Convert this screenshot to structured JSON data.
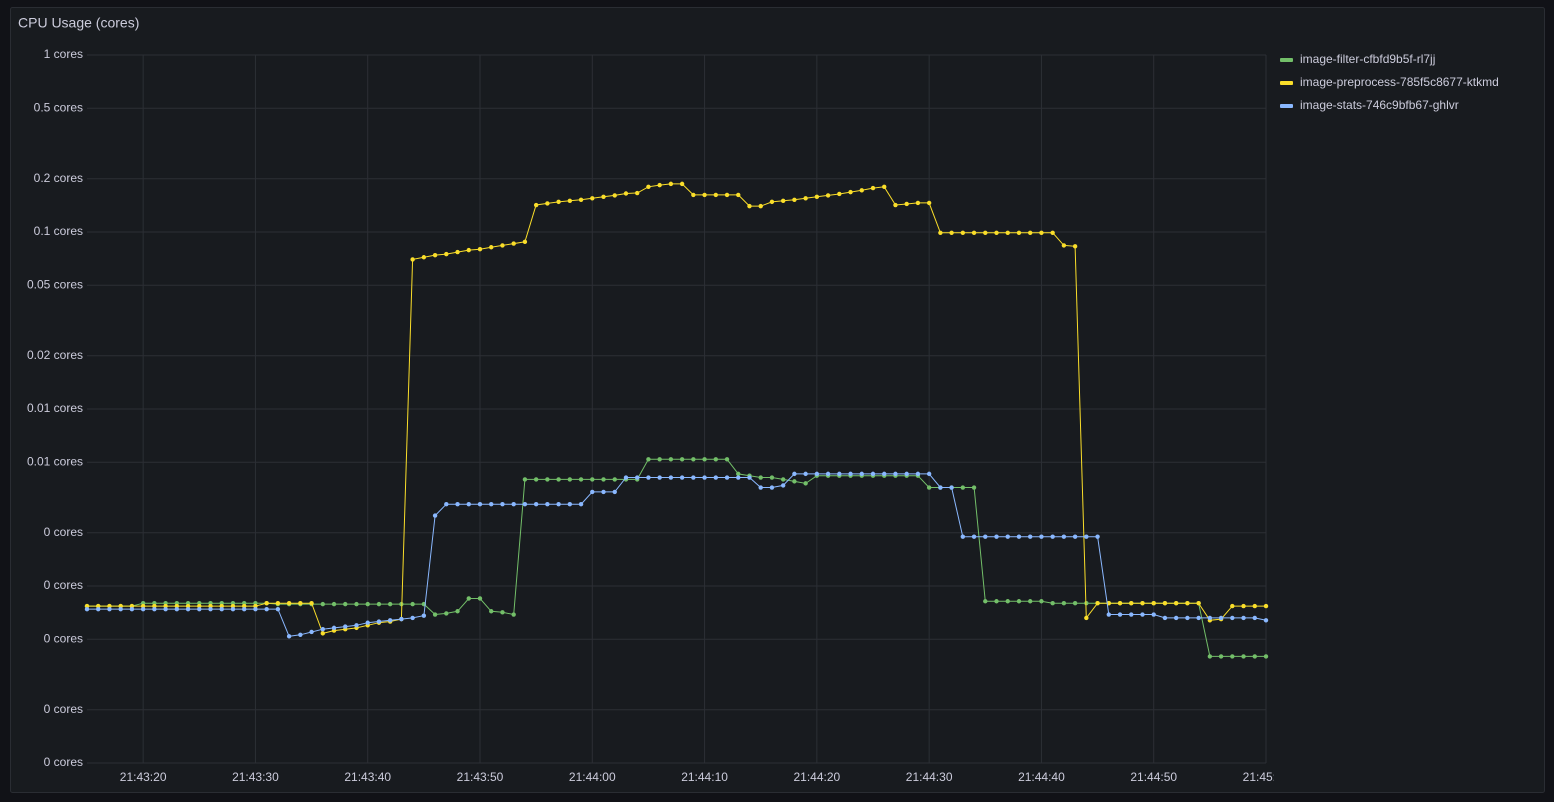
{
  "chart_data": {
    "type": "line",
    "title": "CPU Usage (cores)",
    "yscale": "log",
    "grid": true,
    "legend": "right",
    "xlim": [
      "21:43:15",
      "21:45:00"
    ],
    "xticks": [
      "21:43:20",
      "21:43:30",
      "21:43:40",
      "21:43:50",
      "21:44:00",
      "21:44:10",
      "21:44:20",
      "21:44:30",
      "21:44:40",
      "21:44:50",
      "21:45:00"
    ],
    "ylim": [
      0.0001,
      1
    ],
    "yticks": [
      {
        "value": 1,
        "label": "1 cores"
      },
      {
        "value": 0.5,
        "label": "0.5 cores"
      },
      {
        "value": 0.2,
        "label": "0.2 cores"
      },
      {
        "value": 0.1,
        "label": "0.1 cores"
      },
      {
        "value": 0.05,
        "label": "0.05 cores"
      },
      {
        "value": 0.02,
        "label": "0.02 cores"
      },
      {
        "value": 0.01,
        "label": "0.01 cores"
      },
      {
        "value": 0.005,
        "label": "0.01 cores"
      },
      {
        "value": 0.002,
        "label": "0 cores"
      },
      {
        "value": 0.001,
        "label": "0 cores"
      },
      {
        "value": 0.0005,
        "label": "0 cores"
      },
      {
        "value": 0.0002,
        "label": "0 cores"
      },
      {
        "value": 0.0001,
        "label": "0 cores"
      }
    ],
    "x": [
      "21:43:15",
      "21:43:16",
      "21:43:17",
      "21:43:18",
      "21:43:19",
      "21:43:20",
      "21:43:21",
      "21:43:22",
      "21:43:23",
      "21:43:24",
      "21:43:25",
      "21:43:26",
      "21:43:27",
      "21:43:28",
      "21:43:29",
      "21:43:30",
      "21:43:31",
      "21:43:32",
      "21:43:33",
      "21:43:34",
      "21:43:35",
      "21:43:36",
      "21:43:37",
      "21:43:38",
      "21:43:39",
      "21:43:40",
      "21:43:41",
      "21:43:42",
      "21:43:43",
      "21:43:44",
      "21:43:45",
      "21:43:46",
      "21:43:47",
      "21:43:48",
      "21:43:49",
      "21:43:50",
      "21:43:51",
      "21:43:52",
      "21:43:53",
      "21:43:54",
      "21:43:55",
      "21:43:56",
      "21:43:57",
      "21:43:58",
      "21:43:59",
      "21:44:00",
      "21:44:01",
      "21:44:02",
      "21:44:03",
      "21:44:04",
      "21:44:05",
      "21:44:06",
      "21:44:07",
      "21:44:08",
      "21:44:09",
      "21:44:10",
      "21:44:11",
      "21:44:12",
      "21:44:13",
      "21:44:14",
      "21:44:15",
      "21:44:16",
      "21:44:17",
      "21:44:18",
      "21:44:19",
      "21:44:20",
      "21:44:21",
      "21:44:22",
      "21:44:23",
      "21:44:24",
      "21:44:25",
      "21:44:26",
      "21:44:27",
      "21:44:28",
      "21:44:29",
      "21:44:30",
      "21:44:31",
      "21:44:32",
      "21:44:33",
      "21:44:34",
      "21:44:35",
      "21:44:36",
      "21:44:37",
      "21:44:38",
      "21:44:39",
      "21:44:40",
      "21:44:41",
      "21:44:42",
      "21:44:43",
      "21:44:44",
      "21:44:45",
      "21:44:46",
      "21:44:47",
      "21:44:48",
      "21:44:49",
      "21:44:50",
      "21:44:51",
      "21:44:52",
      "21:44:53",
      "21:44:54",
      "21:44:55",
      "21:44:56",
      "21:44:57",
      "21:44:58",
      "21:44:59",
      "21:45:00"
    ],
    "series": [
      {
        "name": "image-filter-cfbfd9b5f-rl7jj",
        "color": "#73bf69",
        "values": [
          0.00077,
          0.00077,
          0.00077,
          0.00077,
          0.00077,
          0.0008,
          0.0008,
          0.0008,
          0.0008,
          0.0008,
          0.0008,
          0.0008,
          0.0008,
          0.0008,
          0.0008,
          0.0008,
          0.0008,
          0.00079,
          0.00079,
          0.00079,
          0.00079,
          0.00079,
          0.00079,
          0.00079,
          0.00079,
          0.00079,
          0.00079,
          0.00079,
          0.00079,
          0.00079,
          0.00079,
          0.00069,
          0.0007,
          0.00072,
          0.00085,
          0.00085,
          0.00072,
          0.00071,
          0.00069,
          0.004,
          0.004,
          0.004,
          0.004,
          0.004,
          0.004,
          0.004,
          0.004,
          0.004,
          0.004,
          0.004,
          0.0052,
          0.0052,
          0.0052,
          0.0052,
          0.0052,
          0.0052,
          0.0052,
          0.0052,
          0.0043,
          0.0042,
          0.0041,
          0.0041,
          0.004,
          0.0039,
          0.0038,
          0.0042,
          0.0042,
          0.0042,
          0.0042,
          0.0042,
          0.0042,
          0.0042,
          0.0042,
          0.0042,
          0.0042,
          0.0036,
          0.0036,
          0.0036,
          0.0036,
          0.0036,
          0.00082,
          0.00082,
          0.00082,
          0.00082,
          0.00082,
          0.00082,
          0.0008,
          0.0008,
          0.0008,
          0.0008,
          0.0008,
          0.0008,
          0.0008,
          0.0008,
          0.0008,
          0.0008,
          0.0008,
          0.0008,
          0.0008,
          0.0008,
          0.0004,
          0.0004,
          0.0004,
          0.0004,
          0.0004,
          0.0004
        ]
      },
      {
        "name": "image-preprocess-785f5c8677-ktkmd",
        "color": "#fade2a",
        "values": [
          0.00077,
          0.00077,
          0.00077,
          0.00077,
          0.00077,
          0.00077,
          0.00077,
          0.00077,
          0.00077,
          0.00077,
          0.00077,
          0.00077,
          0.00077,
          0.00077,
          0.00077,
          0.00077,
          0.0008,
          0.0008,
          0.0008,
          0.0008,
          0.0008,
          0.00054,
          0.00056,
          0.00057,
          0.00058,
          0.0006,
          0.00062,
          0.00063,
          0.00065,
          0.07,
          0.072,
          0.074,
          0.075,
          0.077,
          0.079,
          0.08,
          0.082,
          0.084,
          0.086,
          0.088,
          0.142,
          0.145,
          0.148,
          0.15,
          0.152,
          0.155,
          0.158,
          0.161,
          0.165,
          0.166,
          0.18,
          0.184,
          0.187,
          0.187,
          0.162,
          0.162,
          0.162,
          0.162,
          0.162,
          0.14,
          0.14,
          0.148,
          0.15,
          0.152,
          0.155,
          0.158,
          0.161,
          0.164,
          0.168,
          0.172,
          0.177,
          0.18,
          0.142,
          0.144,
          0.146,
          0.146,
          0.099,
          0.099,
          0.099,
          0.099,
          0.099,
          0.099,
          0.099,
          0.099,
          0.099,
          0.099,
          0.099,
          0.084,
          0.083,
          0.00066,
          0.0008,
          0.0008,
          0.0008,
          0.0008,
          0.0008,
          0.0008,
          0.0008,
          0.0008,
          0.0008,
          0.0008,
          0.00064,
          0.00065,
          0.00077,
          0.00077,
          0.00077,
          0.00077
        ]
      },
      {
        "name": "image-stats-746c9bfb67-ghlvr",
        "color": "#8ab8ff",
        "values": [
          0.00074,
          0.00074,
          0.00074,
          0.00074,
          0.00074,
          0.00074,
          0.00074,
          0.00074,
          0.00074,
          0.00074,
          0.00074,
          0.00074,
          0.00074,
          0.00074,
          0.00074,
          0.00074,
          0.00074,
          0.00074,
          0.00052,
          0.00053,
          0.00055,
          0.00057,
          0.00058,
          0.00059,
          0.0006,
          0.00062,
          0.00063,
          0.00064,
          0.00065,
          0.00066,
          0.00068,
          0.0025,
          0.0029,
          0.0029,
          0.0029,
          0.0029,
          0.0029,
          0.0029,
          0.0029,
          0.0029,
          0.0029,
          0.0029,
          0.0029,
          0.0029,
          0.0029,
          0.0034,
          0.0034,
          0.0034,
          0.0041,
          0.0041,
          0.0041,
          0.0041,
          0.0041,
          0.0041,
          0.0041,
          0.0041,
          0.0041,
          0.0041,
          0.0041,
          0.0041,
          0.0036,
          0.0036,
          0.0037,
          0.0043,
          0.0043,
          0.0043,
          0.0043,
          0.0043,
          0.0043,
          0.0043,
          0.0043,
          0.0043,
          0.0043,
          0.0043,
          0.0043,
          0.0043,
          0.0036,
          0.0036,
          0.0019,
          0.0019,
          0.0019,
          0.0019,
          0.0019,
          0.0019,
          0.0019,
          0.0019,
          0.0019,
          0.0019,
          0.0019,
          0.0019,
          0.0019,
          0.00069,
          0.00069,
          0.00069,
          0.00069,
          0.00069,
          0.00066,
          0.00066,
          0.00066,
          0.00066,
          0.00066,
          0.00066,
          0.00066,
          0.00066,
          0.00066,
          0.00064
        ]
      }
    ]
  }
}
